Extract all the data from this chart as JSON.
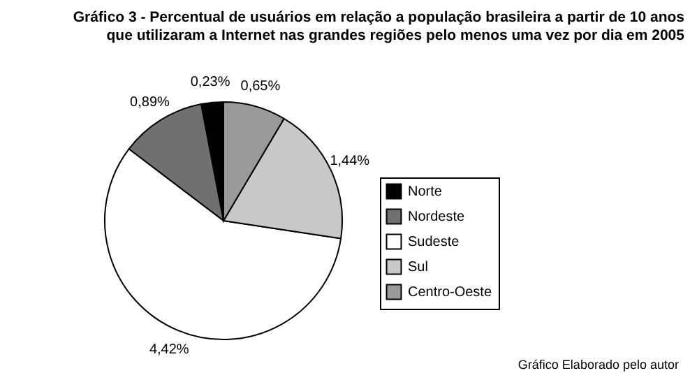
{
  "chart_data": {
    "type": "pie",
    "title": "Gráfico 3 - Percentual de usuários em relação a população brasileira a partir de 10 anos que utilizaram a Internet nas grandes regiões pelo menos uma vez por dia em 2005",
    "categories": [
      "Norte",
      "Nordeste",
      "Sudeste",
      "Sul",
      "Centro-Oeste"
    ],
    "values": [
      0.23,
      0.89,
      4.42,
      1.44,
      0.65
    ],
    "colors": [
      "#000000",
      "#707070",
      "#ffffff",
      "#c8c8c8",
      "#9a9a9a"
    ],
    "value_labels": [
      "0,23%",
      "0,89%",
      "4,42%",
      "1,44%",
      "0,65%"
    ],
    "legend": "right",
    "annotations": [
      "Gráfico Elaborado pelo autor"
    ]
  }
}
